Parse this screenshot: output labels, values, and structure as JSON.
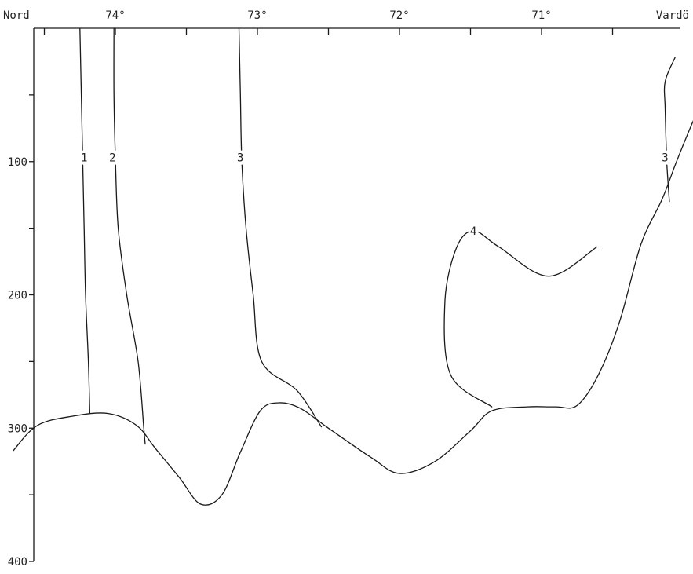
{
  "chart_data": {
    "type": "line",
    "subtype": "oceanographic-section-isolines",
    "title": "",
    "xlabel": "",
    "ylabel": "",
    "x_axis": {
      "position": "top",
      "left_label": "Nord",
      "right_label": "Vardö",
      "ticks": [
        "74°",
        "73°",
        "72°",
        "71°"
      ],
      "tick_values": [
        74,
        73,
        72,
        71
      ]
    },
    "y_axis": {
      "reversed": true,
      "ylim": [
        0,
        400
      ],
      "tick_values": [
        100,
        200,
        300,
        400
      ],
      "tick_labels": [
        "100",
        "200",
        "300",
        "400"
      ]
    },
    "grid": false,
    "bottom_profile": [
      [
        74.72,
        317
      ],
      [
        74.55,
        298
      ],
      [
        74.3,
        291
      ],
      [
        74.05,
        289
      ],
      [
        73.85,
        298
      ],
      [
        73.72,
        315
      ],
      [
        73.55,
        337
      ],
      [
        73.4,
        357
      ],
      [
        73.25,
        350
      ],
      [
        73.12,
        318
      ],
      [
        72.98,
        287
      ],
      [
        72.85,
        281
      ],
      [
        72.7,
        285
      ],
      [
        72.5,
        300
      ],
      [
        72.2,
        322
      ],
      [
        72.0,
        334
      ],
      [
        71.75,
        325
      ],
      [
        71.5,
        302
      ],
      [
        71.35,
        287
      ],
      [
        71.1,
        284
      ],
      [
        70.9,
        284
      ],
      [
        70.75,
        283
      ],
      [
        70.6,
        260
      ],
      [
        70.45,
        220
      ],
      [
        70.3,
        162
      ],
      [
        70.15,
        128
      ],
      [
        70.05,
        100
      ],
      [
        69.95,
        74
      ],
      [
        69.85,
        50
      ],
      [
        69.75,
        25
      ],
      [
        69.68,
        0
      ]
    ],
    "isolines": [
      {
        "label": "1",
        "label_at": [
          74.22,
          97
        ],
        "points": [
          [
            74.25,
            0
          ],
          [
            74.24,
            50
          ],
          [
            74.23,
            100
          ],
          [
            74.22,
            150
          ],
          [
            74.21,
            200
          ],
          [
            74.19,
            250
          ],
          [
            74.18,
            289
          ]
        ]
      },
      {
        "label": "2",
        "label_at": [
          74.02,
          97
        ],
        "points": [
          [
            74.01,
            0
          ],
          [
            74.01,
            50
          ],
          [
            74.0,
            97
          ],
          [
            73.98,
            150
          ],
          [
            73.92,
            200
          ],
          [
            73.84,
            250
          ],
          [
            73.8,
            300
          ],
          [
            73.79,
            312
          ]
        ]
      },
      {
        "label": "3",
        "label_at": [
          73.12,
          97
        ],
        "points": [
          [
            73.13,
            0
          ],
          [
            73.12,
            50
          ],
          [
            73.11,
            100
          ],
          [
            73.08,
            150
          ],
          [
            73.03,
            200
          ],
          [
            72.97,
            250
          ],
          [
            72.72,
            272
          ],
          [
            72.55,
            299
          ]
        ]
      },
      {
        "label": "4",
        "label_at": [
          71.48,
          152
        ],
        "points": [
          [
            70.61,
            164
          ],
          [
            70.95,
            186
          ],
          [
            71.3,
            164
          ],
          [
            71.48,
            152
          ],
          [
            71.6,
            165
          ],
          [
            71.68,
            205
          ],
          [
            71.64,
            260
          ],
          [
            71.35,
            284
          ]
        ]
      },
      {
        "label": "3",
        "label_at": [
          70.13,
          97
        ],
        "points": [
          [
            70.06,
            22
          ],
          [
            70.13,
            40
          ],
          [
            70.13,
            60
          ],
          [
            70.12,
            97
          ],
          [
            70.11,
            115
          ],
          [
            70.1,
            130
          ]
        ]
      }
    ],
    "extents_note": "isolines terminate at the bottom profile"
  }
}
